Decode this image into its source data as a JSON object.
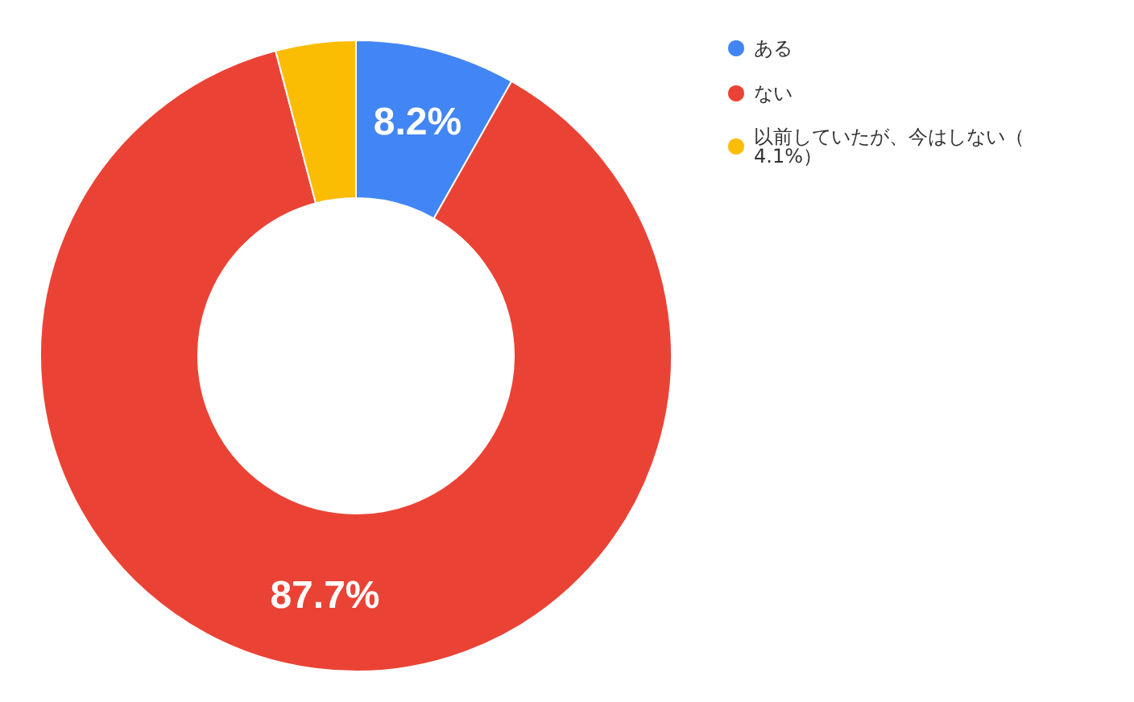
{
  "chart_data": {
    "type": "donut",
    "categories": [
      "ある",
      "ない",
      "以前していたが、今はしない（4.1%）"
    ],
    "values": [
      8.2,
      87.7,
      4.1
    ],
    "colors": [
      "#4285f4",
      "#ea4335",
      "#fbbc04"
    ],
    "value_labels": [
      "8.2%",
      "87.7%",
      null
    ],
    "legend": "top right"
  }
}
